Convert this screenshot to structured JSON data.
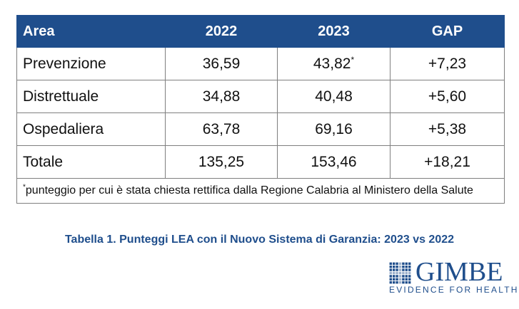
{
  "table": {
    "headers": [
      "Area",
      "2022",
      "2023",
      "GAP"
    ],
    "rows": [
      {
        "area": "Prevenzione",
        "y2022": "36,59",
        "y2023": "43,82",
        "y2023_mark": "*",
        "gap": "+7,23"
      },
      {
        "area": "Distrettuale",
        "y2022": "34,88",
        "y2023": "40,48",
        "y2023_mark": "",
        "gap": "+5,60"
      },
      {
        "area": "Ospedaliera",
        "y2022": "63,78",
        "y2023": "69,16",
        "y2023_mark": "",
        "gap": "+5,38"
      },
      {
        "area": "Totale",
        "y2022": "135,25",
        "y2023": "153,46",
        "y2023_mark": "",
        "gap": "+18,21"
      }
    ],
    "note_mark": "*",
    "note": "punteggio per cui è stata chiesta rettifica dalla Regione Calabria al Ministero della Salute"
  },
  "caption": "Tabella 1. Punteggi LEA con il Nuovo Sistema di Garanzia: 2023 vs 2022",
  "logo": {
    "name": "GIMBE",
    "tagline": "EVIDENCE FOR HEALTH",
    "icon": "gimbe-grid-logo-icon"
  },
  "colors": {
    "header_bg": "#1f4e8c",
    "brand": "#1f4e8c",
    "border": "#7f7f7f"
  }
}
